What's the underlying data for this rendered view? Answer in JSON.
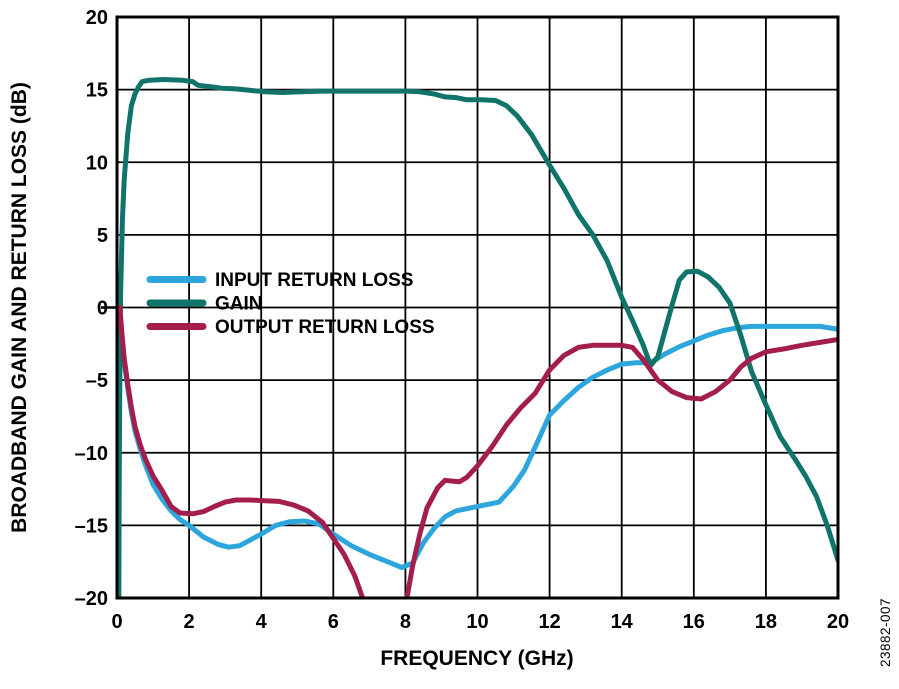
{
  "chart_data": {
    "type": "line",
    "title": "",
    "xlabel": "FREQUENCY (GHz)",
    "ylabel": "BROADBAND GAIN AND RETURN LOSS (dB)",
    "watermark": "23882-007",
    "xlim": [
      0,
      20
    ],
    "ylim": [
      -20,
      20
    ],
    "grid": true,
    "legend_position": "inside-left-middle",
    "x_ticks": [
      {
        "v": 0,
        "label": "0"
      },
      {
        "v": 2,
        "label": "2"
      },
      {
        "v": 4,
        "label": "4"
      },
      {
        "v": 6,
        "label": "6"
      },
      {
        "v": 8,
        "label": "8"
      },
      {
        "v": 10,
        "label": "10"
      },
      {
        "v": 12,
        "label": "12"
      },
      {
        "v": 14,
        "label": "14"
      },
      {
        "v": 16,
        "label": "16"
      },
      {
        "v": 18,
        "label": "18"
      },
      {
        "v": 20,
        "label": "20"
      }
    ],
    "y_ticks": [
      {
        "v": 20,
        "label": "20"
      },
      {
        "v": 15,
        "label": "15"
      },
      {
        "v": 10,
        "label": "10"
      },
      {
        "v": 5,
        "label": "5"
      },
      {
        "v": 0,
        "label": "0"
      },
      {
        "v": -5,
        "label": "–5"
      },
      {
        "v": -10,
        "label": "–10"
      },
      {
        "v": -15,
        "label": "–15"
      },
      {
        "v": -20,
        "label": "–20"
      }
    ],
    "series": [
      {
        "name": "INPUT RETURN LOSS",
        "color": "#2CA6DC",
        "points": [
          [
            0.08,
            0
          ],
          [
            0.12,
            -1.5
          ],
          [
            0.2,
            -3.8
          ],
          [
            0.3,
            -5.6
          ],
          [
            0.4,
            -7.2
          ],
          [
            0.5,
            -8.5
          ],
          [
            0.65,
            -9.8
          ],
          [
            0.8,
            -10.9
          ],
          [
            1.0,
            -12.2
          ],
          [
            1.25,
            -13.2
          ],
          [
            1.5,
            -14.0
          ],
          [
            1.75,
            -14.6
          ],
          [
            2.0,
            -15.0
          ],
          [
            2.4,
            -15.8
          ],
          [
            2.8,
            -16.3
          ],
          [
            3.1,
            -16.5
          ],
          [
            3.4,
            -16.4
          ],
          [
            3.7,
            -16.0
          ],
          [
            4.0,
            -15.6
          ],
          [
            4.4,
            -15.0
          ],
          [
            4.8,
            -14.75
          ],
          [
            5.2,
            -14.7
          ],
          [
            5.6,
            -14.9
          ],
          [
            6.0,
            -15.6
          ],
          [
            6.5,
            -16.4
          ],
          [
            7.0,
            -17.0
          ],
          [
            7.5,
            -17.5
          ],
          [
            7.9,
            -17.9
          ],
          [
            8.2,
            -17.6
          ],
          [
            8.5,
            -16.2
          ],
          [
            8.8,
            -15.2
          ],
          [
            9.1,
            -14.4
          ],
          [
            9.4,
            -14.0
          ],
          [
            9.8,
            -13.8
          ],
          [
            10.2,
            -13.6
          ],
          [
            10.6,
            -13.4
          ],
          [
            11.0,
            -12.3
          ],
          [
            11.3,
            -11.2
          ],
          [
            11.6,
            -9.6
          ],
          [
            12.0,
            -7.4
          ],
          [
            12.4,
            -6.4
          ],
          [
            12.8,
            -5.5
          ],
          [
            13.2,
            -4.8
          ],
          [
            13.6,
            -4.3
          ],
          [
            14.0,
            -3.9
          ],
          [
            14.4,
            -3.8
          ],
          [
            14.8,
            -3.8
          ],
          [
            15.2,
            -3.2
          ],
          [
            15.6,
            -2.7
          ],
          [
            16.0,
            -2.3
          ],
          [
            16.4,
            -1.9
          ],
          [
            16.8,
            -1.6
          ],
          [
            17.2,
            -1.4
          ],
          [
            17.6,
            -1.3
          ],
          [
            18.0,
            -1.3
          ],
          [
            18.5,
            -1.3
          ],
          [
            19.0,
            -1.3
          ],
          [
            19.5,
            -1.3
          ],
          [
            20.0,
            -1.5
          ]
        ]
      },
      {
        "name": "GAIN",
        "color": "#10746B",
        "points": [
          [
            0.05,
            -21
          ],
          [
            0.06,
            -12
          ],
          [
            0.08,
            -4
          ],
          [
            0.1,
            1
          ],
          [
            0.15,
            6
          ],
          [
            0.2,
            8.8
          ],
          [
            0.3,
            12
          ],
          [
            0.4,
            13.9
          ],
          [
            0.5,
            14.7
          ],
          [
            0.6,
            15.2
          ],
          [
            0.7,
            15.55
          ],
          [
            0.9,
            15.65
          ],
          [
            1.3,
            15.7
          ],
          [
            1.8,
            15.65
          ],
          [
            2.1,
            15.55
          ],
          [
            2.25,
            15.3
          ],
          [
            2.6,
            15.2
          ],
          [
            2.9,
            15.1
          ],
          [
            3.3,
            15.05
          ],
          [
            3.7,
            14.95
          ],
          [
            4.1,
            14.85
          ],
          [
            4.6,
            14.8
          ],
          [
            5.1,
            14.85
          ],
          [
            5.7,
            14.9
          ],
          [
            6.5,
            14.9
          ],
          [
            7.3,
            14.9
          ],
          [
            8.0,
            14.9
          ],
          [
            8.4,
            14.85
          ],
          [
            8.8,
            14.7
          ],
          [
            9.1,
            14.5
          ],
          [
            9.4,
            14.45
          ],
          [
            9.7,
            14.3
          ],
          [
            10.1,
            14.3
          ],
          [
            10.5,
            14.25
          ],
          [
            10.8,
            13.9
          ],
          [
            11.1,
            13.2
          ],
          [
            11.5,
            11.9
          ],
          [
            12.0,
            9.8
          ],
          [
            12.4,
            8.2
          ],
          [
            12.8,
            6.4
          ],
          [
            13.2,
            5.0
          ],
          [
            13.6,
            3.2
          ],
          [
            14.0,
            0.7
          ],
          [
            14.3,
            -0.9
          ],
          [
            14.6,
            -2.6
          ],
          [
            14.8,
            -4.0
          ],
          [
            15.0,
            -3.4
          ],
          [
            15.2,
            -1.6
          ],
          [
            15.4,
            0.2
          ],
          [
            15.6,
            1.9
          ],
          [
            15.8,
            2.45
          ],
          [
            16.1,
            2.5
          ],
          [
            16.4,
            2.1
          ],
          [
            16.7,
            1.4
          ],
          [
            17.0,
            0.3
          ],
          [
            17.3,
            -1.9
          ],
          [
            17.6,
            -4.4
          ],
          [
            18.0,
            -6.7
          ],
          [
            18.4,
            -8.9
          ],
          [
            18.8,
            -10.4
          ],
          [
            19.1,
            -11.6
          ],
          [
            19.4,
            -13.0
          ],
          [
            19.7,
            -15.0
          ],
          [
            20.0,
            -17.4
          ]
        ]
      },
      {
        "name": "OUTPUT RETURN LOSS",
        "color": "#A31E4D",
        "points": [
          [
            0.08,
            0
          ],
          [
            0.12,
            -1.3
          ],
          [
            0.2,
            -3.5
          ],
          [
            0.3,
            -5.3
          ],
          [
            0.4,
            -6.9
          ],
          [
            0.5,
            -8.2
          ],
          [
            0.65,
            -9.5
          ],
          [
            0.8,
            -10.5
          ],
          [
            1.0,
            -11.6
          ],
          [
            1.25,
            -12.6
          ],
          [
            1.5,
            -13.7
          ],
          [
            1.75,
            -14.15
          ],
          [
            2.1,
            -14.2
          ],
          [
            2.4,
            -14.05
          ],
          [
            2.7,
            -13.7
          ],
          [
            3.0,
            -13.4
          ],
          [
            3.3,
            -13.25
          ],
          [
            3.7,
            -13.25
          ],
          [
            4.1,
            -13.3
          ],
          [
            4.5,
            -13.35
          ],
          [
            4.9,
            -13.6
          ],
          [
            5.3,
            -14.0
          ],
          [
            5.7,
            -14.8
          ],
          [
            6.0,
            -15.9
          ],
          [
            6.3,
            -17.0
          ],
          [
            6.6,
            -18.5
          ],
          [
            6.9,
            -20.6
          ],
          [
            7.2,
            -22
          ],
          [
            7.8,
            -22
          ],
          [
            8.0,
            -20.6
          ],
          [
            8.2,
            -17.8
          ],
          [
            8.4,
            -15.6
          ],
          [
            8.6,
            -13.8
          ],
          [
            8.9,
            -12.4
          ],
          [
            9.1,
            -11.9
          ],
          [
            9.3,
            -11.95
          ],
          [
            9.5,
            -12.0
          ],
          [
            9.7,
            -11.7
          ],
          [
            10.0,
            -10.9
          ],
          [
            10.4,
            -9.6
          ],
          [
            10.8,
            -8.1
          ],
          [
            11.2,
            -6.9
          ],
          [
            11.6,
            -5.9
          ],
          [
            12.0,
            -4.3
          ],
          [
            12.4,
            -3.3
          ],
          [
            12.8,
            -2.75
          ],
          [
            13.2,
            -2.6
          ],
          [
            13.6,
            -2.6
          ],
          [
            14.0,
            -2.6
          ],
          [
            14.3,
            -2.75
          ],
          [
            14.6,
            -3.6
          ],
          [
            15.0,
            -5.0
          ],
          [
            15.4,
            -5.8
          ],
          [
            15.8,
            -6.2
          ],
          [
            16.2,
            -6.3
          ],
          [
            16.6,
            -5.8
          ],
          [
            17.0,
            -5.0
          ],
          [
            17.3,
            -4.1
          ],
          [
            17.6,
            -3.5
          ],
          [
            18.0,
            -3.05
          ],
          [
            18.5,
            -2.85
          ],
          [
            19.0,
            -2.6
          ],
          [
            19.5,
            -2.4
          ],
          [
            20.0,
            -2.2
          ]
        ]
      }
    ]
  }
}
